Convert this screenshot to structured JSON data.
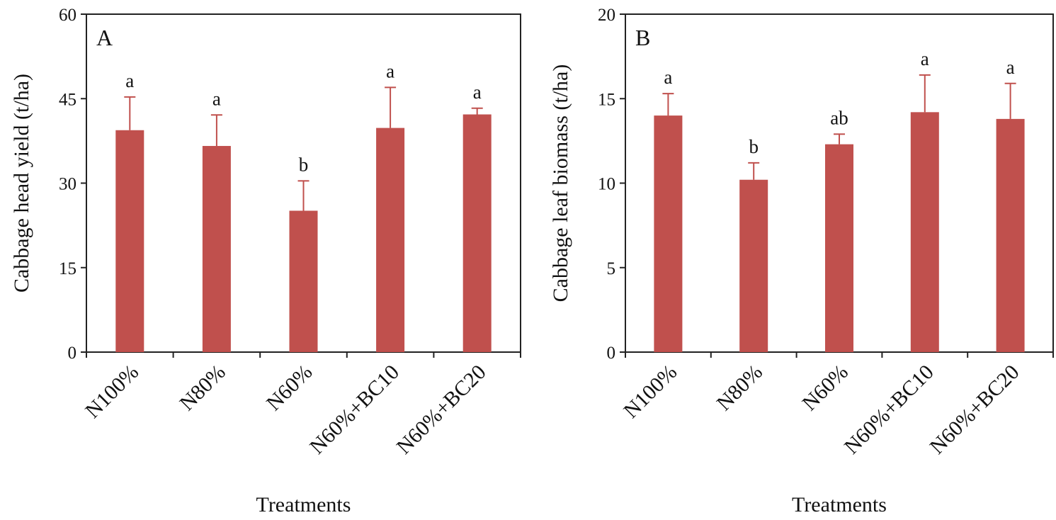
{
  "chart_data": [
    {
      "type": "bar",
      "panel_label": "A",
      "categories": [
        "N100%",
        "N80%",
        "N60%",
        "N60%+BC10",
        "N60%+BC20"
      ],
      "values": [
        39.4,
        36.6,
        25.1,
        39.8,
        42.2
      ],
      "error_upper": [
        45.3,
        42.1,
        30.4,
        47.0,
        43.3
      ],
      "significance": [
        "a",
        "a",
        "b",
        "a",
        "a"
      ],
      "xlabel": "Treatments",
      "ylabel": "Cabbage head yield (t/ha)",
      "ylim": [
        0,
        60
      ],
      "yticks": [
        0,
        15,
        30,
        45,
        60
      ],
      "grid": false,
      "bar_color": "#c0504d"
    },
    {
      "type": "bar",
      "panel_label": "B",
      "categories": [
        "N100%",
        "N80%",
        "N60%",
        "N60%+BC10",
        "N60%+BC20"
      ],
      "values": [
        14.0,
        10.2,
        12.3,
        14.2,
        13.8
      ],
      "error_upper": [
        15.3,
        11.2,
        12.9,
        16.4,
        15.9
      ],
      "significance": [
        "a",
        "b",
        "ab",
        "a",
        "a"
      ],
      "xlabel": "Treatments",
      "ylabel": "Cabbage leaf biomass (t/ha)",
      "ylim": [
        0,
        20
      ],
      "yticks": [
        0,
        5,
        10,
        15,
        20
      ],
      "grid": false,
      "bar_color": "#c0504d"
    }
  ]
}
